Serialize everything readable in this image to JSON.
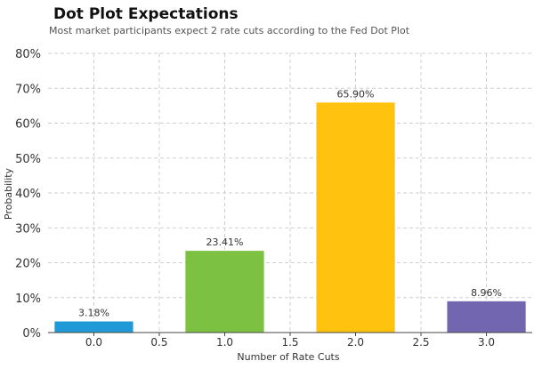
{
  "chart_data": {
    "type": "bar",
    "title": "Dot Plot Expectations",
    "subtitle": "Most market participants expect 2 rate cuts according to the Fed Dot Plot",
    "xlabel": "Number of Rate Cuts",
    "ylabel": "Probability",
    "x": [
      0,
      1,
      2,
      3
    ],
    "values": [
      3.18,
      23.41,
      65.9,
      8.96
    ],
    "data_labels": [
      "3.18%",
      "23.41%",
      "65.90%",
      "8.96%"
    ],
    "colors": [
      "#1f9ad6",
      "#7dc142",
      "#ffc20e",
      "#7366b0"
    ],
    "xlim": [
      -0.35,
      3.35
    ],
    "ylim": [
      0,
      80
    ],
    "x_ticks": [
      0.0,
      0.5,
      1.0,
      1.5,
      2.0,
      2.5,
      3.0
    ],
    "x_tick_labels": [
      "0.0",
      "0.5",
      "1.0",
      "1.5",
      "2.0",
      "2.5",
      "3.0"
    ],
    "y_ticks": [
      0,
      10,
      20,
      30,
      40,
      50,
      60,
      70,
      80
    ],
    "y_tick_labels": [
      "0%",
      "10%",
      "20%",
      "30%",
      "40%",
      "50%",
      "60%",
      "70%",
      "80%"
    ],
    "grid": true,
    "bar_width": 0.6
  }
}
